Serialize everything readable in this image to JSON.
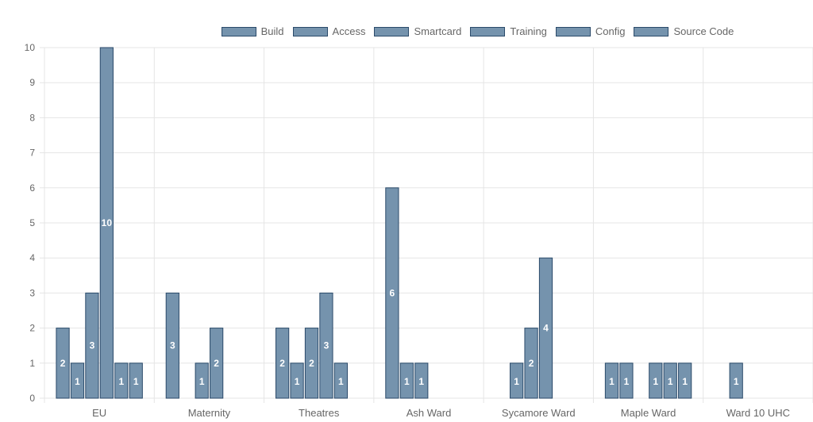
{
  "chart_data": {
    "type": "bar",
    "title": "",
    "xlabel": "",
    "ylabel": "",
    "ylim": [
      0,
      10
    ],
    "ytick_step": 1,
    "legend_position": "top",
    "colors": {
      "bar_fill": "#7593ad",
      "bar_stroke": "#2b4a6a",
      "grid": "#e5e5e5",
      "text": "#666666",
      "bar_label": "#ffffff"
    },
    "categories": [
      "EU",
      "Maternity",
      "Theatres",
      "Ash Ward",
      "Sycamore Ward",
      "Maple Ward",
      "Ward 10 UHC"
    ],
    "series": [
      {
        "name": "Build",
        "values": [
          2,
          3,
          2,
          6,
          0,
          1,
          0
        ]
      },
      {
        "name": "Access",
        "values": [
          1,
          0,
          1,
          1,
          1,
          1,
          1
        ]
      },
      {
        "name": "Smartcard",
        "values": [
          3,
          1,
          2,
          1,
          2,
          0,
          0
        ]
      },
      {
        "name": "Training",
        "values": [
          10,
          2,
          3,
          0,
          4,
          1,
          0
        ]
      },
      {
        "name": "Config",
        "values": [
          1,
          0,
          1,
          0,
          0,
          1,
          0
        ]
      },
      {
        "name": "Source Code",
        "values": [
          1,
          0,
          0,
          0,
          0,
          1,
          0
        ]
      }
    ]
  }
}
